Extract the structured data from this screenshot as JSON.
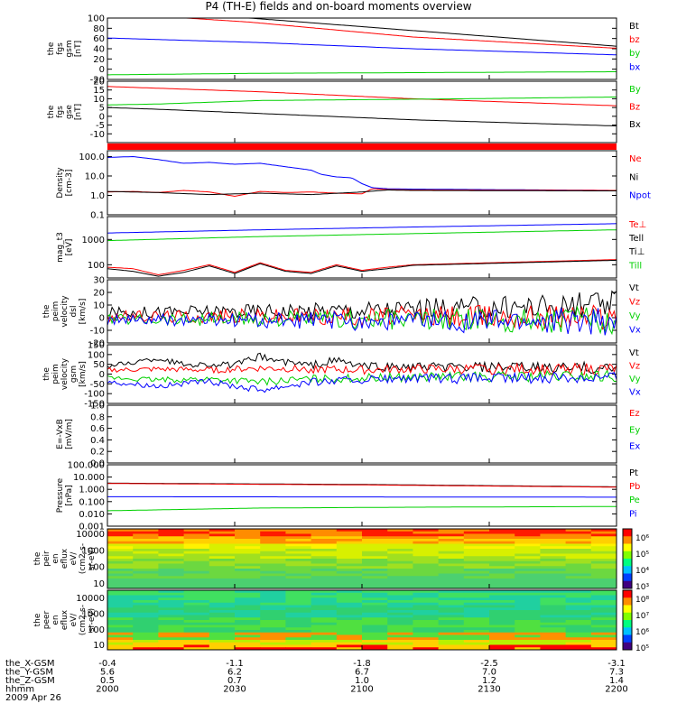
{
  "title": "P4 (TH-E) fields and on-board moments overview",
  "colors": {
    "black": "#000000",
    "red": "#ff0000",
    "green": "#00d000",
    "blue": "#0000ff"
  },
  "chart_data": [
    {
      "type": "line",
      "id": "fgs-gsm",
      "ylabel": [
        "the",
        "fgs",
        "gsm",
        "[nT]"
      ],
      "yticks": [
        "100",
        "80",
        "60",
        "40",
        "20",
        "0",
        "-20"
      ],
      "ylim": [
        -20,
        100
      ],
      "legend": [
        {
          "text": "Bt",
          "color": "black"
        },
        {
          "text": "bz",
          "color": "red"
        },
        {
          "text": "by",
          "color": "green"
        },
        {
          "text": "bx",
          "color": "blue"
        }
      ],
      "series": [
        {
          "color": "black",
          "x": [
            0,
            0.28,
            1
          ],
          "y": [
            125,
            100,
            45
          ]
        },
        {
          "color": "red",
          "x": [
            0,
            0.28,
            0.6,
            1
          ],
          "y": [
            110,
            92,
            63,
            41
          ]
        },
        {
          "color": "green",
          "x": [
            0,
            0.3,
            0.55,
            1
          ],
          "y": [
            -11,
            -8,
            -7,
            -5
          ]
        },
        {
          "color": "blue",
          "x": [
            0,
            0.3,
            0.6,
            1
          ],
          "y": [
            61,
            52,
            40,
            28
          ]
        }
      ]
    },
    {
      "type": "line",
      "id": "fgs-gse",
      "ylabel": [
        "the",
        "fgs",
        "gse",
        "[nT]"
      ],
      "yticks": [
        "20",
        "15",
        "10",
        "5",
        "0",
        "-5",
        "-10"
      ],
      "ylim": [
        -15,
        20
      ],
      "legend": [
        {
          "text": "By",
          "color": "green"
        },
        {
          "text": "Bz",
          "color": "red"
        },
        {
          "text": "Bx",
          "color": "black"
        }
      ],
      "series": [
        {
          "color": "red",
          "x": [
            0,
            0.3,
            0.6,
            1
          ],
          "y": [
            17,
            14,
            10,
            6
          ]
        },
        {
          "color": "green",
          "x": [
            0,
            0.1,
            0.3,
            0.5,
            0.7,
            1
          ],
          "y": [
            6.5,
            7,
            9,
            9.5,
            10,
            11
          ]
        },
        {
          "color": "black",
          "x": [
            0,
            0.1,
            0.35,
            0.6,
            1
          ],
          "y": [
            5,
            4,
            1,
            -2,
            -5.5
          ]
        }
      ]
    },
    {
      "type": "line",
      "id": "density",
      "scale": "log",
      "ylabel": [
        "Density",
        "[cm-3]"
      ],
      "yticks": [
        "100.0",
        "10.0",
        "1.0",
        "0.1"
      ],
      "ylim": [
        0.1,
        200
      ],
      "legend": [
        {
          "text": "Ne",
          "color": "red"
        },
        {
          "text": "Ni",
          "color": "black"
        },
        {
          "text": "Npot",
          "color": "blue"
        }
      ],
      "series": [
        {
          "color": "blue",
          "x": [
            0,
            0.05,
            0.1,
            0.15,
            0.2,
            0.25,
            0.3,
            0.35,
            0.4,
            0.42,
            0.45,
            0.48,
            0.5,
            0.52,
            0.55,
            0.6,
            1
          ],
          "y": [
            90,
            100,
            70,
            45,
            50,
            40,
            45,
            30,
            20,
            12,
            9,
            8,
            4,
            2.5,
            2.2,
            2.1,
            1.8
          ]
        },
        {
          "color": "red",
          "x": [
            0,
            0.05,
            0.1,
            0.15,
            0.2,
            0.25,
            0.3,
            0.35,
            0.4,
            0.45,
            0.5,
            0.52,
            0.55,
            0.6,
            1
          ],
          "y": [
            1.5,
            1.6,
            1.4,
            1.8,
            1.5,
            0.9,
            1.6,
            1.4,
            1.5,
            1.3,
            1.2,
            2.2,
            2.0,
            1.9,
            1.8
          ]
        },
        {
          "color": "black",
          "x": [
            0,
            0.1,
            0.2,
            0.3,
            0.4,
            0.5,
            0.55,
            0.6,
            1
          ],
          "y": [
            1.6,
            1.4,
            1.1,
            1.3,
            1.1,
            1.5,
            1.9,
            1.8,
            1.7
          ]
        }
      ]
    },
    {
      "type": "line",
      "id": "temperature",
      "scale": "log",
      "ylabel": [
        "mag_t3",
        "[eV]"
      ],
      "yticks": [
        "1000",
        "100"
      ],
      "ylim": [
        30,
        8000
      ],
      "legend": [
        {
          "text": "Te⊥",
          "color": "red"
        },
        {
          "text": "Tell",
          "color": "black"
        },
        {
          "text": "Ti⊥",
          "color": "black"
        },
        {
          "text": "Till",
          "color": "green"
        }
      ],
      "series": [
        {
          "color": "blue",
          "x": [
            0,
            0.3,
            0.6,
            1
          ],
          "y": [
            1800,
            2400,
            3100,
            4200
          ]
        },
        {
          "color": "green",
          "x": [
            0,
            0.3,
            0.6,
            1
          ],
          "y": [
            900,
            1300,
            1700,
            2400
          ]
        },
        {
          "color": "red",
          "x": [
            0,
            0.05,
            0.1,
            0.15,
            0.2,
            0.25,
            0.3,
            0.35,
            0.4,
            0.45,
            0.5,
            0.55,
            0.6,
            1
          ],
          "y": [
            80,
            70,
            40,
            60,
            100,
            50,
            120,
            60,
            50,
            100,
            60,
            80,
            100,
            160
          ]
        },
        {
          "color": "black",
          "x": [
            0,
            0.05,
            0.1,
            0.15,
            0.2,
            0.25,
            0.3,
            0.35,
            0.4,
            0.45,
            0.5,
            0.55,
            0.6,
            1
          ],
          "y": [
            70,
            55,
            35,
            50,
            90,
            45,
            110,
            55,
            45,
            90,
            55,
            70,
            95,
            150
          ]
        }
      ]
    },
    {
      "type": "line",
      "id": "peim-velocity",
      "ylabel": [
        "the",
        "peim",
        "velocity",
        "dsl",
        "[km/s]"
      ],
      "yticks": [
        "30",
        "20",
        "10",
        "0",
        "-10",
        "-20"
      ],
      "ylim": [
        -20,
        30
      ],
      "legend": [
        {
          "text": "Vt",
          "color": "black"
        },
        {
          "text": "Vz",
          "color": "red"
        },
        {
          "text": "Vy",
          "color": "green"
        },
        {
          "text": "Vx",
          "color": "blue"
        }
      ],
      "series": [
        {
          "color": "black",
          "x": [
            0,
            0.25,
            0.5,
            0.75,
            1
          ],
          "y": [
            4,
            5,
            6,
            8,
            10
          ]
        },
        {
          "color": "red",
          "x": [
            0,
            1
          ],
          "y": [
            1,
            1
          ]
        },
        {
          "color": "green",
          "x": [
            0,
            1
          ],
          "y": [
            -1,
            -2
          ]
        },
        {
          "color": "blue",
          "x": [
            0,
            1
          ],
          "y": [
            -2,
            -3
          ]
        }
      ]
    },
    {
      "type": "line",
      "id": "peim-velocity-gsm",
      "ylabel": [
        "the",
        "peim",
        "velocity",
        "gsm",
        "[km/s]"
      ],
      "yticks": [
        "150",
        "100",
        "50",
        "0",
        "-50",
        "-100",
        "-150"
      ],
      "ylim": [
        -150,
        150
      ],
      "legend": [
        {
          "text": "Vt",
          "color": "black"
        },
        {
          "text": "Vz",
          "color": "red"
        },
        {
          "text": "Vy",
          "color": "green"
        },
        {
          "text": "Vx",
          "color": "blue"
        }
      ],
      "series": [
        {
          "color": "black",
          "x": [
            0,
            0.05,
            0.1,
            0.15,
            0.2,
            0.25,
            0.3,
            0.35,
            0.4,
            0.45,
            0.5,
            0.6,
            1
          ],
          "y": [
            40,
            60,
            80,
            50,
            50,
            45,
            90,
            60,
            45,
            70,
            40,
            35,
            30
          ]
        },
        {
          "color": "red",
          "x": [
            0,
            0.1,
            0.2,
            0.3,
            0.4,
            0.5,
            0.6,
            1
          ],
          "y": [
            20,
            25,
            20,
            30,
            25,
            20,
            25,
            25
          ]
        },
        {
          "color": "green",
          "x": [
            0,
            0.1,
            0.2,
            0.3,
            0.4,
            0.5,
            0.6,
            1
          ],
          "y": [
            -20,
            -30,
            -25,
            -40,
            -25,
            -20,
            -15,
            -10
          ]
        },
        {
          "color": "blue",
          "x": [
            0,
            0.1,
            0.2,
            0.3,
            0.4,
            0.5,
            0.6,
            1
          ],
          "y": [
            -40,
            -60,
            -40,
            -80,
            -40,
            -30,
            -25,
            -15
          ]
        }
      ]
    },
    {
      "type": "line",
      "id": "efield",
      "ylabel": [
        "E=-VxB",
        "[mV/m]"
      ],
      "yticks": [
        "1.0",
        "0.8",
        "0.6",
        "0.4",
        "0.2",
        "0.0"
      ],
      "ylim": [
        0,
        1
      ],
      "legend": [
        {
          "text": "Ez",
          "color": "red"
        },
        {
          "text": "Ey",
          "color": "green"
        },
        {
          "text": "Ex",
          "color": "blue"
        }
      ],
      "series": []
    },
    {
      "type": "line",
      "id": "pressure",
      "scale": "log",
      "ylabel": [
        "Pressure",
        "[nPa]"
      ],
      "yticks": [
        "100.000",
        "10.000",
        "1.000",
        "0.100",
        "0.010",
        "0.001"
      ],
      "ylim": [
        0.001,
        100
      ],
      "legend": [
        {
          "text": "Pt",
          "color": "black"
        },
        {
          "text": "Pb",
          "color": "red"
        },
        {
          "text": "Pe",
          "color": "green"
        },
        {
          "text": "Pi",
          "color": "blue"
        }
      ],
      "series": [
        {
          "color": "black",
          "x": [
            0,
            0.5,
            1
          ],
          "y": [
            3.2,
            2.5,
            1.6
          ]
        },
        {
          "color": "red",
          "x": [
            0,
            0.5,
            1
          ],
          "y": [
            3.0,
            2.3,
            1.5
          ]
        },
        {
          "color": "blue",
          "x": [
            0,
            0.5,
            1
          ],
          "y": [
            0.25,
            0.24,
            0.23
          ]
        },
        {
          "color": "green",
          "x": [
            0,
            0.3,
            0.6,
            1
          ],
          "y": [
            0.018,
            0.03,
            0.035,
            0.04
          ]
        }
      ]
    },
    {
      "type": "heatmap",
      "id": "peir",
      "ylabel": [
        "the",
        "peir",
        "en",
        "eflux",
        "eV/",
        "(cm2-s-",
        "sr-eV)"
      ],
      "yticks": [
        "10000",
        "1000",
        "100",
        "10"
      ],
      "ylim": [
        5,
        20000
      ],
      "colorbar": [
        "10⁶",
        "10⁵",
        "10⁴",
        "10³"
      ]
    },
    {
      "type": "heatmap",
      "id": "peer",
      "ylabel": [
        "the",
        "peer",
        "en",
        "eflux",
        "eV/",
        "(cm2-s-",
        "sr-eV)"
      ],
      "yticks": [
        "10000",
        "1000",
        "100",
        "10"
      ],
      "ylim": [
        5,
        30000
      ],
      "colorbar": [
        "10⁸",
        "10⁷",
        "10⁶",
        "10⁵"
      ]
    }
  ],
  "xaxis": {
    "labels": [
      "the_X-GSM",
      "the_Y-GSM",
      "the_Z-GSM",
      "hhmm"
    ],
    "ticks": [
      {
        "values": [
          "-0.4",
          "5.6",
          "0.5",
          "2000"
        ]
      },
      {
        "values": [
          "-1.1",
          "6.2",
          "0.7",
          "2030"
        ]
      },
      {
        "values": [
          "-1.8",
          "6.7",
          "1.0",
          "2100"
        ]
      },
      {
        "values": [
          "-2.5",
          "7.0",
          "1.2",
          "2130"
        ]
      },
      {
        "values": [
          "-3.1",
          "7.3",
          "1.4",
          "2200"
        ]
      }
    ],
    "date": "2009 Apr 26"
  }
}
